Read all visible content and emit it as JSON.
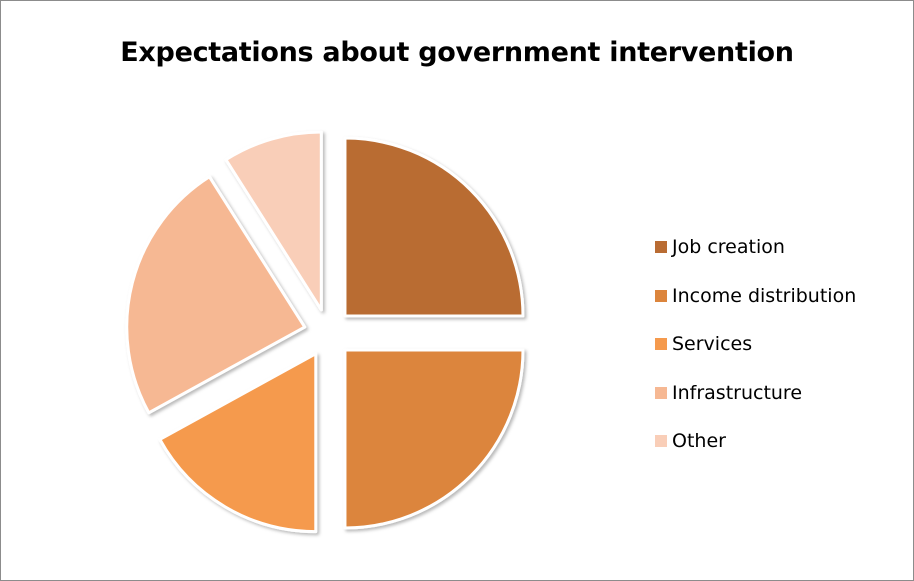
{
  "chart_data": {
    "type": "pie",
    "title": "Expectations about government intervention",
    "exploded": true,
    "categories": [
      "Job creation",
      "Income distribution",
      "Services",
      "Infrastructure",
      "Other"
    ],
    "values": [
      25,
      25,
      17,
      24,
      9
    ],
    "unit": "%",
    "colors": [
      "#b96c33",
      "#dc853c",
      "#f59a4d",
      "#f6b893",
      "#f9ceb8"
    ],
    "legend_position": "right"
  }
}
